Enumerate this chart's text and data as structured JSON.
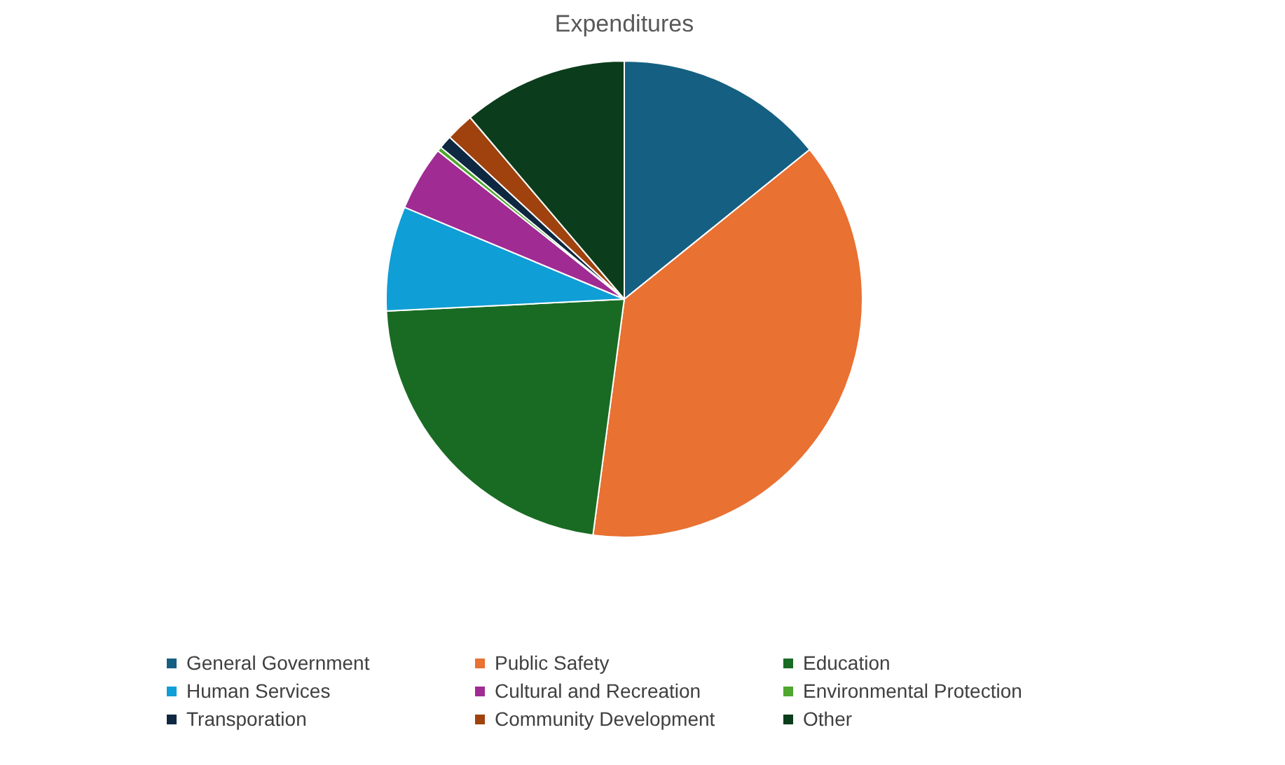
{
  "chart_data": {
    "type": "pie",
    "title": "Expenditures",
    "categories": [
      "General Government",
      "Public Safety",
      "Education",
      "Human Services",
      "Cultural and Recreation",
      "Environmental Protection",
      "Transporation",
      "Community Development",
      "Other"
    ],
    "values": [
      14.2,
      37.9,
      22.1,
      7.1,
      4.4,
      0.3,
      0.9,
      1.9,
      11.2
    ],
    "colors": [
      "#156082",
      "#e97132",
      "#196b24",
      "#0f9ed5",
      "#a02b93",
      "#4ea72e",
      "#0e2841",
      "#a0420e",
      "#0b3d1c"
    ],
    "legend": "bottom"
  }
}
